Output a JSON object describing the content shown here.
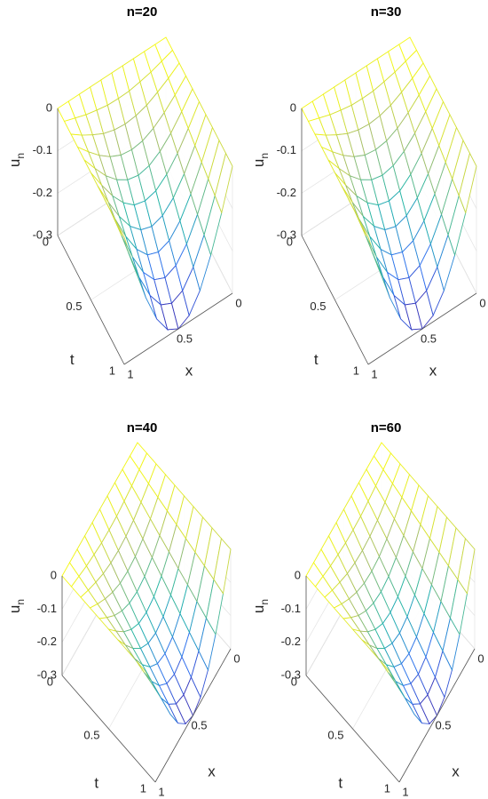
{
  "chart_data": [
    {
      "type": "mesh",
      "title": "n=20",
      "xlabel": "x",
      "ylabel": "t",
      "zlabel": "u",
      "zlabel_subscript": "n",
      "x": [
        0,
        0.1,
        0.2,
        0.3,
        0.4,
        0.5,
        0.6,
        0.7,
        0.8,
        0.9,
        1
      ],
      "y": [
        0,
        0.1,
        0.2,
        0.3,
        0.4,
        0.5,
        0.6,
        0.7,
        0.8,
        0.9,
        1
      ],
      "z": [
        [
          0,
          0,
          0,
          0,
          0,
          0,
          0,
          0,
          0,
          0,
          0
        ],
        [
          0,
          -0.009,
          -0.018,
          -0.024,
          -0.029,
          -0.03,
          -0.029,
          -0.024,
          -0.018,
          -0.009,
          0
        ],
        [
          0,
          -0.019,
          -0.035,
          -0.049,
          -0.057,
          -0.06,
          -0.057,
          -0.049,
          -0.035,
          -0.019,
          0
        ],
        [
          0,
          -0.028,
          -0.053,
          -0.073,
          -0.086,
          -0.09,
          -0.086,
          -0.073,
          -0.053,
          -0.028,
          0
        ],
        [
          0,
          -0.037,
          -0.071,
          -0.097,
          -0.114,
          -0.12,
          -0.114,
          -0.097,
          -0.071,
          -0.037,
          0
        ],
        [
          0,
          -0.046,
          -0.088,
          -0.121,
          -0.143,
          -0.15,
          -0.143,
          -0.121,
          -0.088,
          -0.046,
          0
        ],
        [
          0,
          -0.056,
          -0.106,
          -0.146,
          -0.171,
          -0.18,
          -0.171,
          -0.146,
          -0.106,
          -0.056,
          0
        ],
        [
          0,
          -0.065,
          -0.123,
          -0.17,
          -0.2,
          -0.21,
          -0.2,
          -0.17,
          -0.123,
          -0.065,
          0
        ],
        [
          0,
          -0.074,
          -0.141,
          -0.194,
          -0.228,
          -0.24,
          -0.228,
          -0.194,
          -0.141,
          -0.074,
          0
        ],
        [
          0,
          -0.083,
          -0.159,
          -0.218,
          -0.257,
          -0.27,
          -0.257,
          -0.218,
          -0.159,
          -0.083,
          0
        ],
        [
          0,
          -0.093,
          -0.176,
          -0.243,
          -0.285,
          -0.3,
          -0.285,
          -0.243,
          -0.176,
          -0.093,
          0
        ]
      ],
      "xlim": [
        0,
        1
      ],
      "ylim": [
        0,
        1
      ],
      "zlim": [
        -0.3,
        0
      ],
      "xticks": [
        0,
        0.5,
        1
      ],
      "yticks": [
        0,
        0.5,
        1
      ],
      "zticks": [
        -0.3,
        -0.2,
        -0.1,
        0
      ],
      "colormap": [
        "#3e26a8",
        "#2f6ff0",
        "#1fb5a9",
        "#a5be6a",
        "#f9fb0e"
      ]
    },
    {
      "type": "mesh",
      "title": "n=30",
      "xlabel": "x",
      "ylabel": "t",
      "zlabel": "u",
      "zlabel_subscript": "n",
      "x": [
        0,
        0.1,
        0.2,
        0.3,
        0.4,
        0.5,
        0.6,
        0.7,
        0.8,
        0.9,
        1
      ],
      "y": [
        0,
        0.1,
        0.2,
        0.3,
        0.4,
        0.5,
        0.6,
        0.7,
        0.8,
        0.9,
        1
      ],
      "z": [
        [
          0,
          0,
          0,
          0,
          0,
          0,
          0,
          0,
          0,
          0,
          0
        ],
        [
          0,
          -0.009,
          -0.018,
          -0.024,
          -0.029,
          -0.03,
          -0.029,
          -0.024,
          -0.018,
          -0.009,
          0
        ],
        [
          0,
          -0.019,
          -0.035,
          -0.049,
          -0.057,
          -0.06,
          -0.057,
          -0.049,
          -0.035,
          -0.019,
          0
        ],
        [
          0,
          -0.028,
          -0.053,
          -0.073,
          -0.086,
          -0.09,
          -0.086,
          -0.073,
          -0.053,
          -0.028,
          0
        ],
        [
          0,
          -0.037,
          -0.071,
          -0.097,
          -0.114,
          -0.12,
          -0.114,
          -0.097,
          -0.071,
          -0.037,
          0
        ],
        [
          0,
          -0.046,
          -0.088,
          -0.121,
          -0.143,
          -0.15,
          -0.143,
          -0.121,
          -0.088,
          -0.046,
          0
        ],
        [
          0,
          -0.056,
          -0.106,
          -0.146,
          -0.171,
          -0.18,
          -0.171,
          -0.146,
          -0.106,
          -0.056,
          0
        ],
        [
          0,
          -0.065,
          -0.123,
          -0.17,
          -0.2,
          -0.21,
          -0.2,
          -0.17,
          -0.123,
          -0.065,
          0
        ],
        [
          0,
          -0.074,
          -0.141,
          -0.194,
          -0.228,
          -0.24,
          -0.228,
          -0.194,
          -0.141,
          -0.074,
          0
        ],
        [
          0,
          -0.083,
          -0.159,
          -0.218,
          -0.257,
          -0.27,
          -0.257,
          -0.218,
          -0.159,
          -0.083,
          0
        ],
        [
          0,
          -0.093,
          -0.176,
          -0.243,
          -0.285,
          -0.3,
          -0.285,
          -0.243,
          -0.176,
          -0.093,
          0
        ]
      ],
      "xlim": [
        0,
        1
      ],
      "ylim": [
        0,
        1
      ],
      "zlim": [
        -0.3,
        0
      ],
      "xticks": [
        0,
        0.5,
        1
      ],
      "yticks": [
        0,
        0.5,
        1
      ],
      "zticks": [
        -0.3,
        -0.2,
        -0.1,
        0
      ],
      "colormap": [
        "#3e26a8",
        "#2f6ff0",
        "#1fb5a9",
        "#a5be6a",
        "#f9fb0e"
      ]
    },
    {
      "type": "mesh",
      "title": "n=40",
      "xlabel": "x",
      "ylabel": "t",
      "zlabel": "u",
      "zlabel_subscript": "n",
      "x": [
        0,
        0.1,
        0.2,
        0.3,
        0.4,
        0.5,
        0.6,
        0.7,
        0.8,
        0.9,
        1
      ],
      "y": [
        0,
        0.1,
        0.2,
        0.3,
        0.4,
        0.5,
        0.6,
        0.7,
        0.8,
        0.9,
        1
      ],
      "z": [
        [
          0,
          0,
          0,
          0,
          0,
          0,
          0,
          0,
          0,
          0,
          0
        ],
        [
          0,
          -0.009,
          -0.018,
          -0.024,
          -0.029,
          -0.03,
          -0.029,
          -0.024,
          -0.018,
          -0.009,
          0
        ],
        [
          0,
          -0.019,
          -0.035,
          -0.049,
          -0.057,
          -0.06,
          -0.057,
          -0.049,
          -0.035,
          -0.019,
          0
        ],
        [
          0,
          -0.028,
          -0.053,
          -0.073,
          -0.086,
          -0.09,
          -0.086,
          -0.073,
          -0.053,
          -0.028,
          0
        ],
        [
          0,
          -0.037,
          -0.071,
          -0.097,
          -0.114,
          -0.12,
          -0.114,
          -0.097,
          -0.071,
          -0.037,
          0
        ],
        [
          0,
          -0.046,
          -0.088,
          -0.121,
          -0.143,
          -0.15,
          -0.143,
          -0.121,
          -0.088,
          -0.046,
          0
        ],
        [
          0,
          -0.056,
          -0.106,
          -0.146,
          -0.171,
          -0.18,
          -0.171,
          -0.146,
          -0.106,
          -0.056,
          0
        ],
        [
          0,
          -0.065,
          -0.123,
          -0.17,
          -0.2,
          -0.21,
          -0.2,
          -0.17,
          -0.123,
          -0.065,
          0
        ],
        [
          0,
          -0.074,
          -0.141,
          -0.194,
          -0.228,
          -0.24,
          -0.228,
          -0.194,
          -0.141,
          -0.074,
          0
        ],
        [
          0,
          -0.083,
          -0.159,
          -0.218,
          -0.257,
          -0.27,
          -0.257,
          -0.218,
          -0.159,
          -0.083,
          0
        ],
        [
          0,
          -0.093,
          -0.176,
          -0.243,
          -0.285,
          -0.3,
          -0.285,
          -0.243,
          -0.176,
          -0.093,
          0
        ]
      ],
      "xlim": [
        0,
        1
      ],
      "ylim": [
        0,
        1
      ],
      "zlim": [
        -0.3,
        0
      ],
      "xticks": [
        0,
        0.5,
        1
      ],
      "yticks": [
        0,
        0.5,
        1
      ],
      "zticks": [
        -0.3,
        -0.2,
        -0.1,
        0
      ],
      "colormap": [
        "#3e26a8",
        "#2f6ff0",
        "#1fb5a9",
        "#a5be6a",
        "#f9fb0e"
      ]
    },
    {
      "type": "mesh",
      "title": "n=60",
      "xlabel": "x",
      "ylabel": "t",
      "zlabel": "u",
      "zlabel_subscript": "n",
      "x": [
        0,
        0.1,
        0.2,
        0.3,
        0.4,
        0.5,
        0.6,
        0.7,
        0.8,
        0.9,
        1
      ],
      "y": [
        0,
        0.1,
        0.2,
        0.3,
        0.4,
        0.5,
        0.6,
        0.7,
        0.8,
        0.9,
        1
      ],
      "z": [
        [
          0,
          0,
          0,
          0,
          0,
          0,
          0,
          0,
          0,
          0,
          0
        ],
        [
          0,
          -0.009,
          -0.018,
          -0.024,
          -0.029,
          -0.03,
          -0.029,
          -0.024,
          -0.018,
          -0.009,
          0
        ],
        [
          0,
          -0.019,
          -0.035,
          -0.049,
          -0.057,
          -0.06,
          -0.057,
          -0.049,
          -0.035,
          -0.019,
          0
        ],
        [
          0,
          -0.028,
          -0.053,
          -0.073,
          -0.086,
          -0.09,
          -0.086,
          -0.073,
          -0.053,
          -0.028,
          0
        ],
        [
          0,
          -0.037,
          -0.071,
          -0.097,
          -0.114,
          -0.12,
          -0.114,
          -0.097,
          -0.071,
          -0.037,
          0
        ],
        [
          0,
          -0.046,
          -0.088,
          -0.121,
          -0.143,
          -0.15,
          -0.143,
          -0.121,
          -0.088,
          -0.046,
          0
        ],
        [
          0,
          -0.056,
          -0.106,
          -0.146,
          -0.171,
          -0.18,
          -0.171,
          -0.146,
          -0.106,
          -0.056,
          0
        ],
        [
          0,
          -0.065,
          -0.123,
          -0.17,
          -0.2,
          -0.21,
          -0.2,
          -0.17,
          -0.123,
          -0.065,
          0
        ],
        [
          0,
          -0.074,
          -0.141,
          -0.194,
          -0.228,
          -0.24,
          -0.228,
          -0.194,
          -0.141,
          -0.074,
          0
        ],
        [
          0,
          -0.083,
          -0.159,
          -0.218,
          -0.257,
          -0.27,
          -0.257,
          -0.218,
          -0.159,
          -0.083,
          0
        ],
        [
          0,
          -0.093,
          -0.176,
          -0.243,
          -0.285,
          -0.3,
          -0.285,
          -0.243,
          -0.176,
          -0.093,
          0
        ]
      ],
      "xlim": [
        0,
        1
      ],
      "ylim": [
        0,
        1
      ],
      "zlim": [
        -0.3,
        0
      ],
      "xticks": [
        0,
        0.5,
        1
      ],
      "yticks": [
        0,
        0.5,
        1
      ],
      "zticks": [
        -0.3,
        -0.2,
        -0.1,
        0
      ],
      "colormap": [
        "#3e26a8",
        "#2f6ff0",
        "#1fb5a9",
        "#a5be6a",
        "#f9fb0e"
      ]
    }
  ]
}
